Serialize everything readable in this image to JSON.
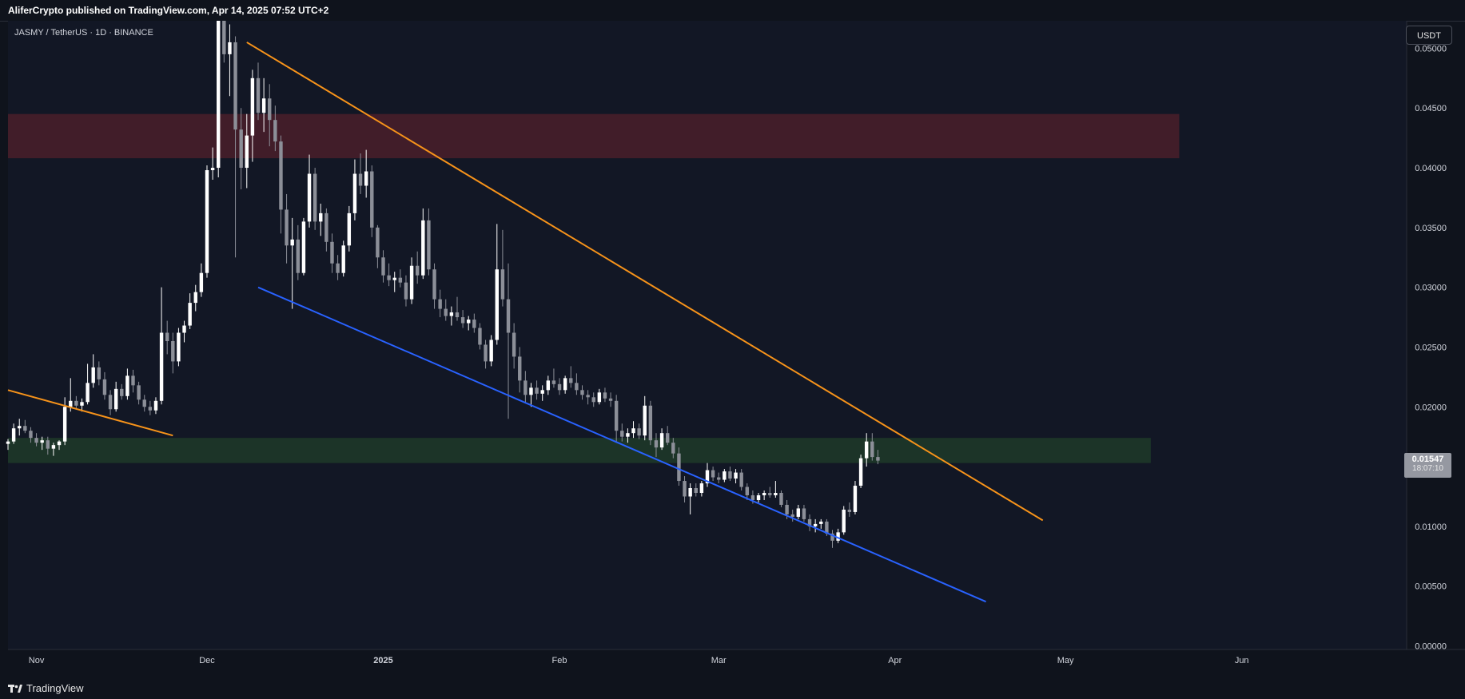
{
  "header": {
    "publisher_line": "AliferCrypto published on TradingView.com, Apr 14, 2025 07:52 UTC+2"
  },
  "symbol": {
    "title": "JASMY / TetherUS · 1D · BINANCE",
    "currency_button": "USDT"
  },
  "footer": {
    "brand": "TradingView"
  },
  "last_price": {
    "price": "0.01547",
    "countdown": "18:07:10"
  },
  "colors": {
    "background": "#0f131c",
    "up_candle": "#ffffff",
    "down_candle": "#8c8f98",
    "resistance_zone": "#4a1e2a",
    "support_zone": "#1e3a29",
    "upper_trendline": "#f7931a",
    "lower_trendline": "#2962ff"
  },
  "chart_data": {
    "type": "candlestick",
    "timeframe": "1D",
    "x_axis": {
      "labels": [
        "Nov",
        "Dec",
        "2025",
        "Feb",
        "Mar",
        "Apr",
        "May",
        "Jun"
      ],
      "range": [
        "2024-10-27",
        "2025-06-30"
      ]
    },
    "y_axis": {
      "ticks": [
        "0.00000",
        "0.00500",
        "0.01000",
        "0.01500",
        "0.02000",
        "0.02500",
        "0.03000",
        "0.03500",
        "0.04000",
        "0.04500",
        "0.05000"
      ],
      "range": [
        -0.0003,
        0.0523
      ],
      "position": "right"
    },
    "ohlc_start_date": "2024-10-27",
    "ohlc": [
      [
        0.0169,
        0.0173,
        0.0164,
        0.0171
      ],
      [
        0.0171,
        0.0186,
        0.0169,
        0.0182
      ],
      [
        0.0182,
        0.019,
        0.0176,
        0.0184
      ],
      [
        0.0184,
        0.0189,
        0.0178,
        0.018
      ],
      [
        0.018,
        0.0183,
        0.017,
        0.0174
      ],
      [
        0.0174,
        0.0178,
        0.0167,
        0.017
      ],
      [
        0.017,
        0.0175,
        0.0164,
        0.0172
      ],
      [
        0.0172,
        0.0175,
        0.016,
        0.0165
      ],
      [
        0.0165,
        0.017,
        0.0159,
        0.0168
      ],
      [
        0.0168,
        0.0172,
        0.0164,
        0.0171
      ],
      [
        0.0171,
        0.0208,
        0.0168,
        0.02
      ],
      [
        0.02,
        0.0224,
        0.0196,
        0.0205
      ],
      [
        0.0205,
        0.0209,
        0.0198,
        0.0201
      ],
      [
        0.0201,
        0.0207,
        0.0196,
        0.0204
      ],
      [
        0.0204,
        0.0236,
        0.0202,
        0.022
      ],
      [
        0.022,
        0.0244,
        0.0216,
        0.0233
      ],
      [
        0.0233,
        0.0238,
        0.0218,
        0.0223
      ],
      [
        0.0223,
        0.0229,
        0.0206,
        0.021
      ],
      [
        0.021,
        0.0214,
        0.0193,
        0.0198
      ],
      [
        0.0198,
        0.0221,
        0.0196,
        0.0215
      ],
      [
        0.0215,
        0.0219,
        0.0206,
        0.0209
      ],
      [
        0.0209,
        0.0232,
        0.0206,
        0.0226
      ],
      [
        0.0226,
        0.0231,
        0.0212,
        0.0218
      ],
      [
        0.0218,
        0.0221,
        0.0202,
        0.0206
      ],
      [
        0.0206,
        0.021,
        0.0196,
        0.02
      ],
      [
        0.02,
        0.0205,
        0.0193,
        0.0197
      ],
      [
        0.0197,
        0.0208,
        0.0194,
        0.0205
      ],
      [
        0.0205,
        0.03,
        0.0202,
        0.0262
      ],
      [
        0.0262,
        0.0272,
        0.0244,
        0.0255
      ],
      [
        0.0255,
        0.0262,
        0.0228,
        0.0238
      ],
      [
        0.0238,
        0.0266,
        0.0234,
        0.0262
      ],
      [
        0.0262,
        0.0272,
        0.0254,
        0.0268
      ],
      [
        0.0268,
        0.0295,
        0.0265,
        0.0287
      ],
      [
        0.0287,
        0.0302,
        0.028,
        0.0296
      ],
      [
        0.0296,
        0.032,
        0.0292,
        0.0312
      ],
      [
        0.0312,
        0.0402,
        0.0308,
        0.0398
      ],
      [
        0.0398,
        0.0417,
        0.039,
        0.04
      ],
      [
        0.04,
        0.053,
        0.0392,
        0.0525
      ],
      [
        0.0525,
        0.053,
        0.0488,
        0.0495
      ],
      [
        0.0495,
        0.052,
        0.046,
        0.0505
      ],
      [
        0.0505,
        0.051,
        0.0325,
        0.0432
      ],
      [
        0.0432,
        0.045,
        0.0382,
        0.04
      ],
      [
        0.04,
        0.0445,
        0.0383,
        0.0427
      ],
      [
        0.0427,
        0.0482,
        0.0405,
        0.0475
      ],
      [
        0.0475,
        0.0488,
        0.044,
        0.0446
      ],
      [
        0.0446,
        0.0475,
        0.043,
        0.0458
      ],
      [
        0.0458,
        0.047,
        0.0418,
        0.044
      ],
      [
        0.044,
        0.0452,
        0.0414,
        0.0422
      ],
      [
        0.0422,
        0.0427,
        0.0345,
        0.0365
      ],
      [
        0.0365,
        0.0378,
        0.032,
        0.0335
      ],
      [
        0.0335,
        0.0358,
        0.0282,
        0.034
      ],
      [
        0.034,
        0.0352,
        0.0306,
        0.0312
      ],
      [
        0.0312,
        0.0358,
        0.031,
        0.0355
      ],
      [
        0.0355,
        0.0411,
        0.035,
        0.0395
      ],
      [
        0.0395,
        0.04,
        0.0348,
        0.0355
      ],
      [
        0.0355,
        0.037,
        0.0343,
        0.0362
      ],
      [
        0.0362,
        0.0366,
        0.033,
        0.0338
      ],
      [
        0.0338,
        0.0345,
        0.0312,
        0.032
      ],
      [
        0.032,
        0.0327,
        0.0306,
        0.0312
      ],
      [
        0.0312,
        0.0339,
        0.0309,
        0.0335
      ],
      [
        0.0335,
        0.0368,
        0.033,
        0.0362
      ],
      [
        0.0362,
        0.0407,
        0.0356,
        0.0395
      ],
      [
        0.0395,
        0.0412,
        0.0378,
        0.0385
      ],
      [
        0.0385,
        0.0415,
        0.0375,
        0.0397
      ],
      [
        0.0397,
        0.0402,
        0.0342,
        0.035
      ],
      [
        0.035,
        0.0352,
        0.0316,
        0.0325
      ],
      [
        0.0325,
        0.0331,
        0.0304,
        0.031
      ],
      [
        0.031,
        0.032,
        0.0301,
        0.0306
      ],
      [
        0.0306,
        0.0313,
        0.0296,
        0.0308
      ],
      [
        0.0308,
        0.0315,
        0.03,
        0.0304
      ],
      [
        0.0304,
        0.031,
        0.0284,
        0.029
      ],
      [
        0.029,
        0.0325,
        0.0286,
        0.0318
      ],
      [
        0.0318,
        0.033,
        0.0303,
        0.031
      ],
      [
        0.031,
        0.0366,
        0.0307,
        0.0356
      ],
      [
        0.0356,
        0.0366,
        0.031,
        0.0315
      ],
      [
        0.0315,
        0.032,
        0.0282,
        0.029
      ],
      [
        0.029,
        0.0298,
        0.0275,
        0.0282
      ],
      [
        0.0282,
        0.029,
        0.0272,
        0.0276
      ],
      [
        0.0276,
        0.0284,
        0.0268,
        0.0279
      ],
      [
        0.0279,
        0.0292,
        0.0272,
        0.0275
      ],
      [
        0.0275,
        0.0281,
        0.0266,
        0.027
      ],
      [
        0.027,
        0.0276,
        0.0264,
        0.0273
      ],
      [
        0.0273,
        0.0278,
        0.0262,
        0.0266
      ],
      [
        0.0266,
        0.027,
        0.0248,
        0.0252
      ],
      [
        0.0252,
        0.0256,
        0.0232,
        0.0238
      ],
      [
        0.0238,
        0.026,
        0.0234,
        0.0256
      ],
      [
        0.0256,
        0.0353,
        0.0252,
        0.0315
      ],
      [
        0.0315,
        0.0348,
        0.0284,
        0.029
      ],
      [
        0.029,
        0.032,
        0.019,
        0.0262
      ],
      [
        0.0262,
        0.027,
        0.0232,
        0.0242
      ],
      [
        0.0242,
        0.025,
        0.0212,
        0.0222
      ],
      [
        0.0222,
        0.023,
        0.0203,
        0.021
      ],
      [
        0.021,
        0.022,
        0.02,
        0.0216
      ],
      [
        0.0216,
        0.0222,
        0.0206,
        0.0211
      ],
      [
        0.0211,
        0.0218,
        0.0205,
        0.0214
      ],
      [
        0.0214,
        0.0226,
        0.021,
        0.0222
      ],
      [
        0.0222,
        0.0232,
        0.0216,
        0.0219
      ],
      [
        0.0219,
        0.0224,
        0.021,
        0.0214
      ],
      [
        0.0214,
        0.0226,
        0.0211,
        0.0224
      ],
      [
        0.0224,
        0.0234,
        0.0216,
        0.022
      ],
      [
        0.022,
        0.0228,
        0.021,
        0.0214
      ],
      [
        0.0214,
        0.0218,
        0.0206,
        0.021
      ],
      [
        0.021,
        0.0214,
        0.0202,
        0.0208
      ],
      [
        0.0208,
        0.0212,
        0.02,
        0.0204
      ],
      [
        0.0204,
        0.0215,
        0.0202,
        0.0212
      ],
      [
        0.0212,
        0.0216,
        0.0204,
        0.0207
      ],
      [
        0.0207,
        0.0212,
        0.02,
        0.0205
      ],
      [
        0.0205,
        0.021,
        0.017,
        0.018
      ],
      [
        0.018,
        0.0186,
        0.0171,
        0.0175
      ],
      [
        0.0175,
        0.0182,
        0.017,
        0.0178
      ],
      [
        0.0178,
        0.0188,
        0.0174,
        0.0182
      ],
      [
        0.0182,
        0.0186,
        0.0173,
        0.0176
      ],
      [
        0.0176,
        0.0209,
        0.0172,
        0.0201
      ],
      [
        0.0201,
        0.0205,
        0.0168,
        0.0172
      ],
      [
        0.0172,
        0.0178,
        0.0158,
        0.0166
      ],
      [
        0.0166,
        0.0182,
        0.0164,
        0.0178
      ],
      [
        0.0178,
        0.0184,
        0.0168,
        0.017
      ],
      [
        0.017,
        0.0174,
        0.0157,
        0.0161
      ],
      [
        0.0161,
        0.0166,
        0.0134,
        0.0138
      ],
      [
        0.0138,
        0.0142,
        0.012,
        0.0125
      ],
      [
        0.0125,
        0.0136,
        0.011,
        0.0132
      ],
      [
        0.0132,
        0.0136,
        0.0125,
        0.0128
      ],
      [
        0.0128,
        0.0138,
        0.0125,
        0.0136
      ],
      [
        0.0136,
        0.0153,
        0.0133,
        0.0147
      ],
      [
        0.0147,
        0.015,
        0.0138,
        0.0141
      ],
      [
        0.0141,
        0.0145,
        0.0136,
        0.0139
      ],
      [
        0.0139,
        0.0148,
        0.0137,
        0.0146
      ],
      [
        0.0146,
        0.015,
        0.0138,
        0.014
      ],
      [
        0.014,
        0.0148,
        0.0136,
        0.0145
      ],
      [
        0.0145,
        0.0148,
        0.013,
        0.0133
      ],
      [
        0.0133,
        0.0136,
        0.0122,
        0.0126
      ],
      [
        0.0126,
        0.013,
        0.0119,
        0.0122
      ],
      [
        0.0122,
        0.0128,
        0.012,
        0.0126
      ],
      [
        0.0126,
        0.013,
        0.0122,
        0.0128
      ],
      [
        0.0128,
        0.0133,
        0.0124,
        0.0126
      ],
      [
        0.0126,
        0.0138,
        0.0124,
        0.0128
      ],
      [
        0.0128,
        0.013,
        0.0116,
        0.0118
      ],
      [
        0.0118,
        0.0122,
        0.0106,
        0.011
      ],
      [
        0.011,
        0.0114,
        0.0104,
        0.0108
      ],
      [
        0.0108,
        0.0118,
        0.0106,
        0.0115
      ],
      [
        0.0115,
        0.0118,
        0.0104,
        0.0106
      ],
      [
        0.0106,
        0.011,
        0.0096,
        0.01
      ],
      [
        0.01,
        0.0106,
        0.0095,
        0.0102
      ],
      [
        0.0102,
        0.0106,
        0.0098,
        0.0104
      ],
      [
        0.0104,
        0.0106,
        0.0092,
        0.0094
      ],
      [
        0.0094,
        0.0097,
        0.0082,
        0.0088
      ],
      [
        0.0088,
        0.0098,
        0.0086,
        0.0095
      ],
      [
        0.0095,
        0.0117,
        0.0093,
        0.0114
      ],
      [
        0.0114,
        0.012,
        0.0108,
        0.0112
      ],
      [
        0.0112,
        0.0138,
        0.011,
        0.0134
      ],
      [
        0.0134,
        0.016,
        0.0132,
        0.0157
      ],
      [
        0.0157,
        0.0178,
        0.015,
        0.0171
      ],
      [
        0.0171,
        0.0178,
        0.0155,
        0.0158
      ],
      [
        0.0158,
        0.0164,
        0.0152,
        0.0155
      ]
    ],
    "zones": [
      {
        "name": "resistance-zone",
        "from": "2024-10-27",
        "to": "2025-05-21",
        "low": 0.0408,
        "high": 0.0445
      },
      {
        "name": "support-zone",
        "from": "2024-10-27",
        "to": "2025-05-16",
        "low": 0.0153,
        "high": 0.0174
      }
    ],
    "trendlines": [
      {
        "name": "upper-trendline",
        "color": "orange",
        "from": [
          "2024-12-08",
          0.0505
        ],
        "to": [
          "2025-04-27",
          0.0105
        ]
      },
      {
        "name": "lower-trendline",
        "color": "blue",
        "from": [
          "2024-12-10",
          0.03
        ],
        "to": [
          "2025-04-17",
          0.0037
        ]
      },
      {
        "name": "short-orange-trendline",
        "color": "orange",
        "from": [
          "2024-10-27",
          0.0214
        ],
        "to": [
          "2024-11-25",
          0.0176
        ]
      }
    ],
    "last_price": 0.01547,
    "grid": false
  }
}
